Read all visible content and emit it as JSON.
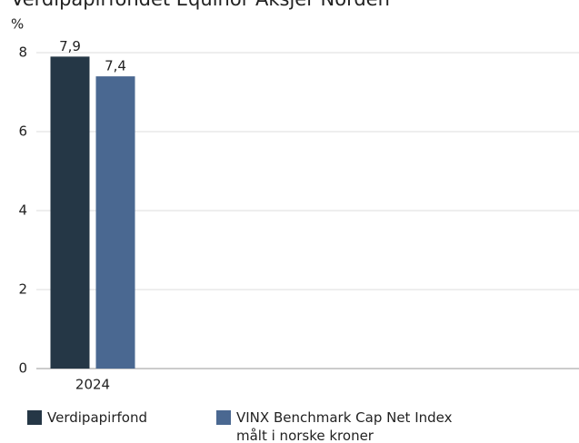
{
  "chart_data": {
    "type": "bar",
    "title": "Verdipapirfondet Equinor Aksjer Norden",
    "y_label": "%",
    "categories": [
      "2024",
      null,
      null,
      null
    ],
    "series": [
      {
        "name": "Verdipapirfond",
        "color": "#253746",
        "values": [
          7.9,
          null,
          null,
          null
        ],
        "value_labels": [
          "7,9",
          null,
          null,
          null
        ]
      },
      {
        "name": "VINX Benchmark Cap Net Index målt i norske kroner",
        "color": "#4a6891",
        "values": [
          7.4,
          null,
          null,
          null
        ],
        "value_labels": [
          "7,4",
          null,
          null,
          null
        ]
      }
    ],
    "ylim": [
      0,
      8
    ],
    "yticks": [
      0,
      2,
      4,
      6,
      8
    ],
    "grid": true
  }
}
